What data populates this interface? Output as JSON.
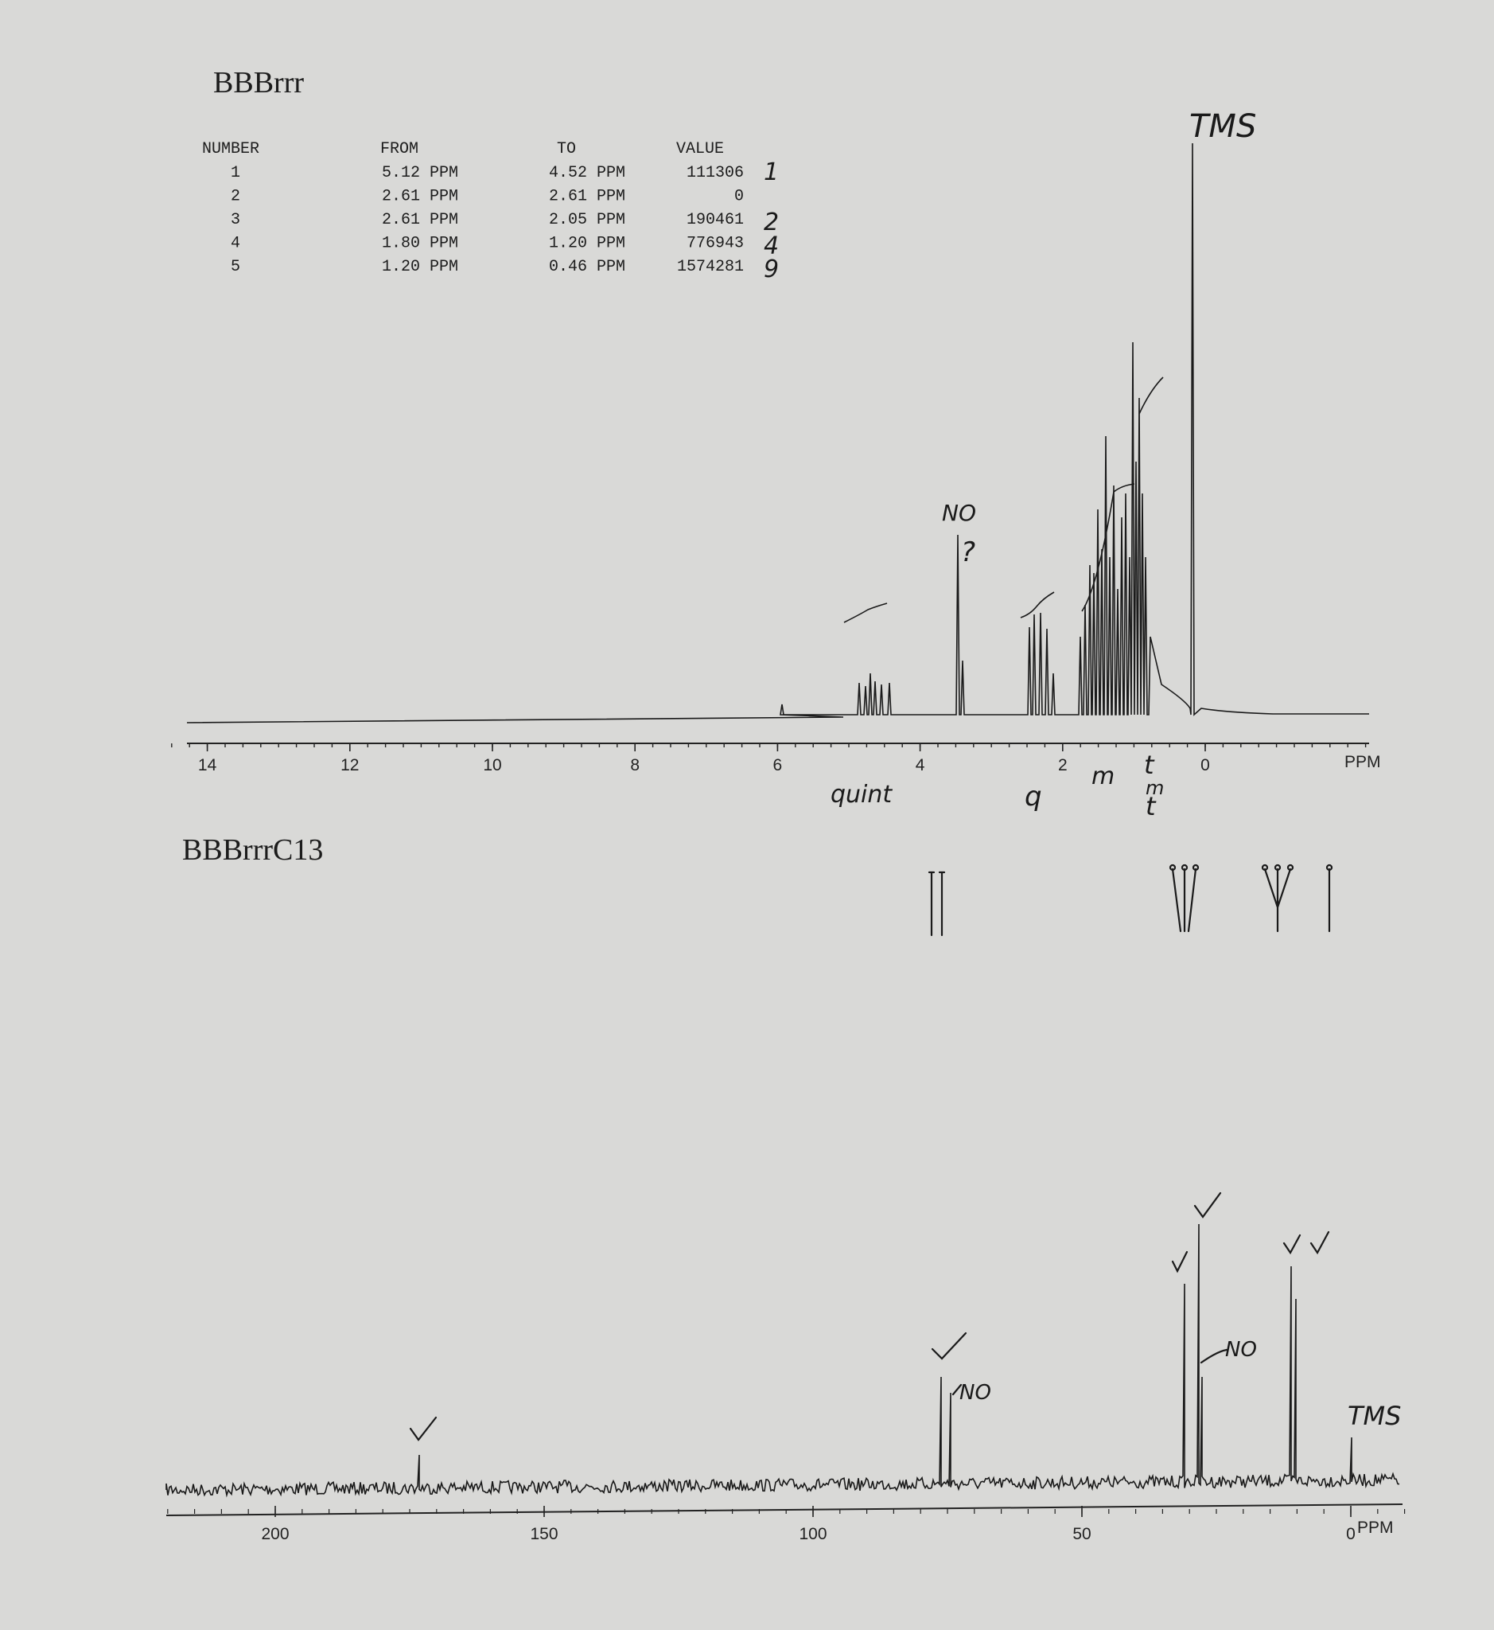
{
  "h1": {
    "title": "BBBrrr",
    "table": {
      "header": [
        "NUMBER",
        "FROM",
        "TO",
        "VALUE"
      ],
      "rows": [
        [
          "1",
          "5.12 PPM",
          "4.52 PPM",
          "111306"
        ],
        [
          "2",
          "2.61 PPM",
          "2.61 PPM",
          "0"
        ],
        [
          "3",
          "2.61 PPM",
          "2.05 PPM",
          "190461"
        ],
        [
          "4",
          "1.80 PPM",
          "1.20 PPM",
          "776943"
        ],
        [
          "5",
          "1.20 PPM",
          "0.46 PPM",
          "1574281"
        ]
      ]
    },
    "handwritten_integrals": [
      "1",
      "2",
      "4",
      "9"
    ],
    "axis": {
      "ticks": [
        14,
        12,
        10,
        8,
        6,
        4,
        2,
        0
      ],
      "unit": "PPM"
    },
    "annotations": {
      "tms": "TMS",
      "no": "NO",
      "question": "?",
      "quint": "quint",
      "q": "q",
      "m": "m",
      "t_top": "t",
      "m_low": "m",
      "t_low": "t"
    }
  },
  "c13": {
    "title": "BBBrrrC13",
    "axis": {
      "ticks": [
        200,
        150,
        100,
        50,
        0
      ],
      "unit": "PPM"
    },
    "annotations": {
      "no_1": "NO",
      "no_2": "NO",
      "tms": "TMS"
    }
  }
}
